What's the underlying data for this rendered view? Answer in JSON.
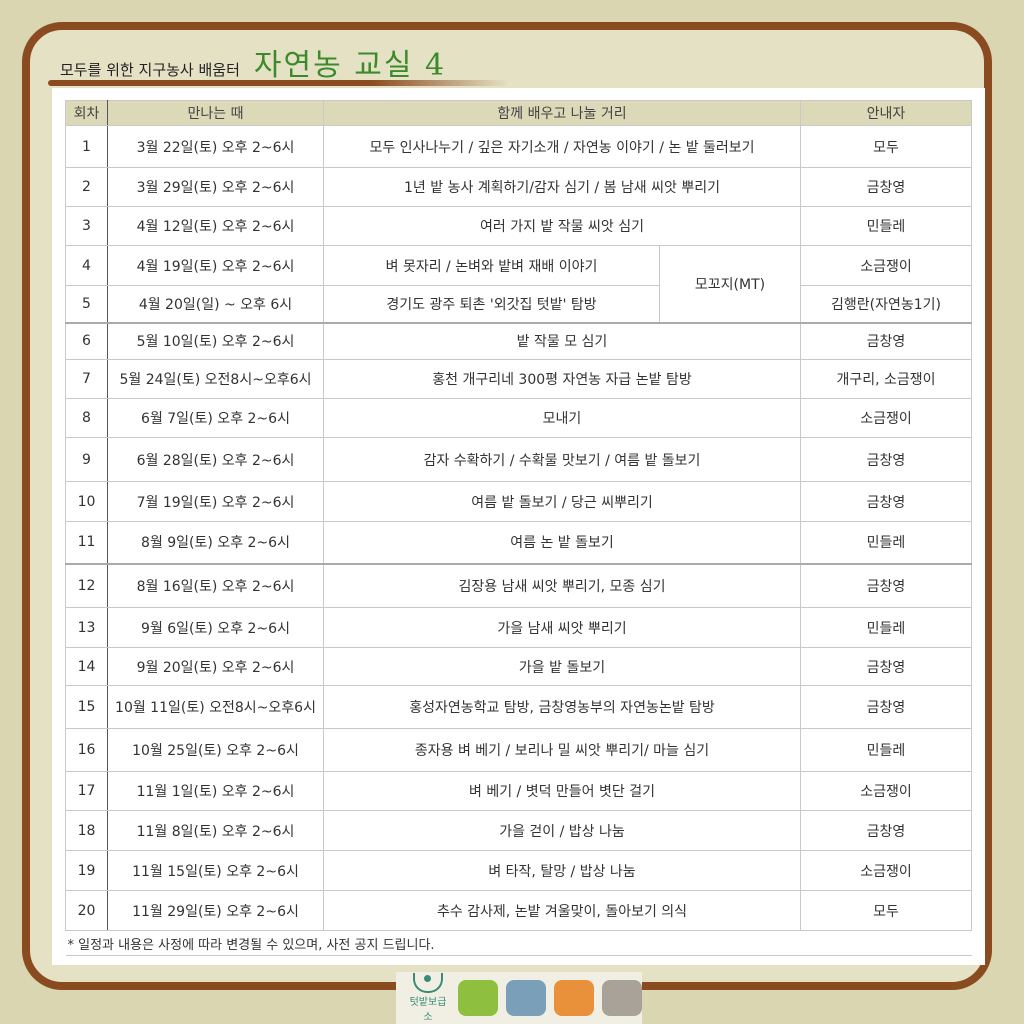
{
  "header": {
    "subtitle": "모두를 위한 지구농사 배움터",
    "title": "자연농 교실  4"
  },
  "table": {
    "columns": [
      "회차",
      "만나는 때",
      "함께 배우고 나눌 거리",
      "안내자"
    ],
    "rows": [
      {
        "no": "1",
        "when": "3월 22일(토) 오후 2~6시",
        "what": "모두 인사나누기 / 깊은 자기소개 / 자연농 이야기 / 논 밭  둘러보기",
        "guide": "모두"
      },
      {
        "no": "2",
        "when": "3월 29일(토) 오후 2~6시",
        "what": "1년 밭 농사 계획하기/감자 심기 / 봄 남새 씨앗 뿌리기",
        "guide": "금창영"
      },
      {
        "no": "3",
        "when": "4월 12일(토) 오후 2~6시",
        "what": "여러 가지 밭 작물 씨앗 심기",
        "guide": "민들레"
      },
      {
        "no": "4",
        "when": "4월 19일(토) 오후 2~6시",
        "what": "벼 못자리 / 논벼와 밭벼 재배 이야기",
        "guide": "소금쟁이",
        "extra": "모꼬지(MT)"
      },
      {
        "no": "5",
        "when": "4월 20일(일) ~ 오후 6시",
        "what": "경기도 광주 퇴촌  '외갓집 텃밭' 탐방",
        "guide": "김행란(자연농1기)"
      },
      {
        "no": "6",
        "when": "5월 10일(토) 오후 2~6시",
        "what": "밭 작물 모 심기",
        "guide": "금창영"
      },
      {
        "no": "7",
        "when": "5월 24일(토) 오전8시~오후6시",
        "what": "홍천 개구리네 300평 자연농 자급 논밭 탐방",
        "guide": "개구리,  소금쟁이"
      },
      {
        "no": "8",
        "when": "6월 7일(토) 오후 2~6시",
        "what": "모내기",
        "guide": "소금쟁이"
      },
      {
        "no": "9",
        "when": "6월 28일(토) 오후 2~6시",
        "what": "감자 수확하기 / 수확물 맛보기 / 여름 밭 돌보기",
        "guide": "금창영"
      },
      {
        "no": "10",
        "when": "7월 19일(토) 오후 2~6시",
        "what": "여름 밭 돌보기 / 당근 씨뿌리기",
        "guide": "금창영"
      },
      {
        "no": "11",
        "when": "8월 9일(토) 오후 2~6시",
        "what": "여름 논 밭 돌보기",
        "guide": "민들레"
      },
      {
        "no": "12",
        "when": "8월 16일(토) 오후 2~6시",
        "what": "김장용 남새 씨앗 뿌리기, 모종 심기",
        "guide": "금창영"
      },
      {
        "no": "13",
        "when": "9월 6일(토) 오후 2~6시",
        "what": "가을 남새 씨앗 뿌리기",
        "guide": "민들레"
      },
      {
        "no": "14",
        "when": "9월 20일(토) 오후 2~6시",
        "what": "가을 밭 돌보기",
        "guide": "금창영"
      },
      {
        "no": "15",
        "when": "10월 11일(토) 오전8시~오후6시",
        "what": "홍성자연농학교 탐방, 금창영농부의 자연농논밭 탐방",
        "guide": "금창영"
      },
      {
        "no": "16",
        "when": "10월 25일(토) 오후 2~6시",
        "what": "종자용 벼 베기 / 보리나 밀 씨앗 뿌리기/ 마늘 심기",
        "guide": "민들레"
      },
      {
        "no": "17",
        "when": "11월 1일(토) 오후 2~6시",
        "what": "벼 베기 /  볏덕 만들어 볏단 걸기",
        "guide": "소금쟁이"
      },
      {
        "no": "18",
        "when": "11월 8일(토) 오후 2~6시",
        "what": "가을 걷이  / 밥상 나눔",
        "guide": "금창영"
      },
      {
        "no": "19",
        "when": "11월 15일(토) 오후 2~6시",
        "what": "벼 타작, 탈망 / 밥상 나눔",
        "guide": "소금쟁이"
      },
      {
        "no": "20",
        "when": "11월 29일(토) 오후 2~6시",
        "what": "추수 감사제, 논밭 겨울맞이,  돌아보기 의식",
        "guide": "모두"
      }
    ],
    "note": "* 일정과 내용은 사정에 따라 변경될 수 있으며, 사전 공지 드립니다."
  },
  "footer": {
    "logo_text": "텃밭보급소",
    "tile_colors": [
      "#8fbf3f",
      "#7a9fb8",
      "#e8903a",
      "#a8a298"
    ]
  },
  "colors": {
    "frame": "#8a4b20",
    "title": "#3c8a2c",
    "header_bg": "#dcd9b8",
    "background": "#d9d6b1"
  }
}
